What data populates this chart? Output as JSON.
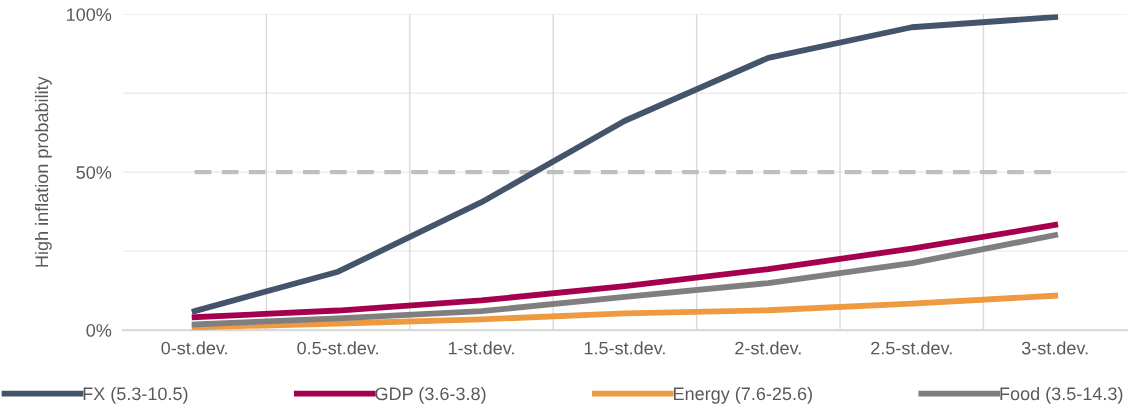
{
  "chart_data": {
    "type": "line",
    "ylabel": "High inflation probability",
    "categories": [
      "0-st.dev.",
      "0.5-st.dev.",
      "1-st.dev.",
      "1.5-st.dev.",
      "2-st.dev.",
      "2.5-st.dev.",
      "3-st.dev."
    ],
    "series": [
      {
        "name": "FX (5.3-10.5)",
        "color": "#44546a",
        "values": [
          6.0,
          18.5,
          40.5,
          66.3,
          86.2,
          95.9,
          99.1
        ]
      },
      {
        "name": "GDP (3.6-3.8)",
        "color": "#a50050",
        "values": [
          4.1,
          6.2,
          9.4,
          13.9,
          19.3,
          25.8,
          33.3
        ]
      },
      {
        "name": "Energy (7.6-25.6)",
        "color": "#ee9a40",
        "values": [
          0.9,
          2.1,
          3.4,
          5.3,
          6.3,
          8.4,
          10.9
        ]
      },
      {
        "name": "Food (3.5-14.3)",
        "color": "#7f7f7f",
        "values": [
          1.8,
          3.7,
          6.0,
          10.5,
          14.9,
          21.2,
          30.1
        ]
      }
    ],
    "ylim": [
      0,
      100
    ],
    "yticks": [
      {
        "value": 0,
        "label": "0%"
      },
      {
        "value": 25,
        "label": null
      },
      {
        "value": 50,
        "label": "50%"
      },
      {
        "value": 75,
        "label": null
      },
      {
        "value": 100,
        "label": "100%"
      }
    ],
    "ref_lines": [
      {
        "axis": "y",
        "value": 50,
        "color": "#bfbfbf",
        "line_style": "dashed"
      }
    ],
    "grid": true,
    "legend": "bottom",
    "marker": "none",
    "line_style": "solid"
  }
}
